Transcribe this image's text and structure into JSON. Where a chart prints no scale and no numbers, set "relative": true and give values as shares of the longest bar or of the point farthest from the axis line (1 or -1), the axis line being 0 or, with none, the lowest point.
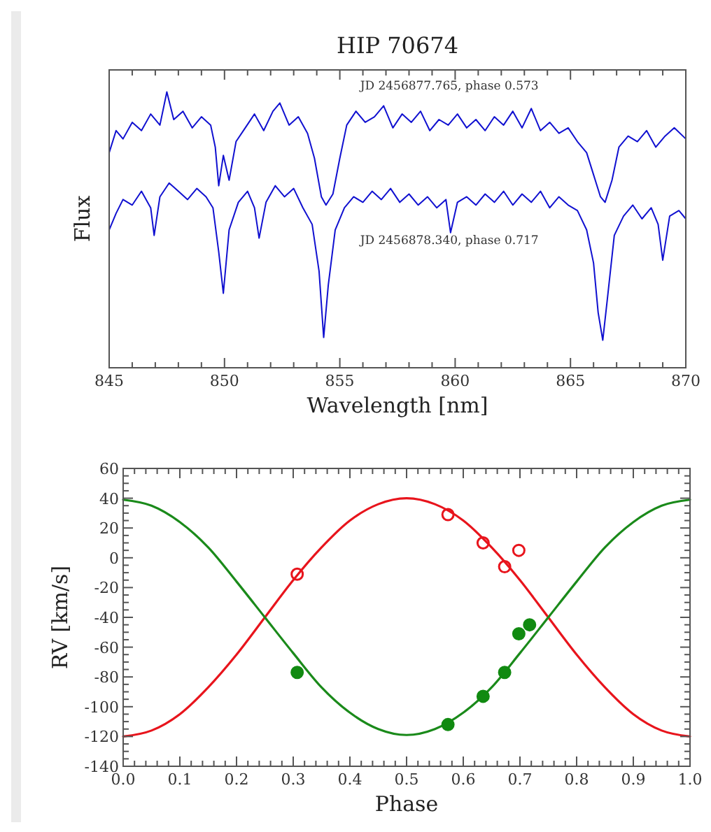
{
  "chart_data": [
    {
      "type": "line",
      "title": "HIP 70674",
      "xlabel": "Wavelength [nm]",
      "ylabel": "Flux",
      "relative": true,
      "xlim": [
        845,
        870
      ],
      "xticks": [
        845,
        850,
        855,
        860,
        865,
        870
      ],
      "annotations": [
        "JD 2456877.765, phase 0.573",
        "JD 2456878.340, phase 0.717"
      ],
      "line_style": "solid",
      "series": [
        {
          "color": "#1010d0",
          "x": [
            845,
            845.3,
            845.6,
            846,
            846.4,
            846.8,
            847.2,
            847.5,
            847.8,
            848.2,
            848.6,
            849,
            849.4,
            849.6,
            849.75,
            849.95,
            850.2,
            850.5,
            850.9,
            851.3,
            851.7,
            852.1,
            852.4,
            852.8,
            853.2,
            853.6,
            853.9,
            854.2,
            854.4,
            854.7,
            855,
            855.3,
            855.7,
            856.1,
            856.5,
            856.9,
            857.3,
            857.7,
            858.1,
            858.5,
            858.9,
            859.3,
            859.7,
            860.1,
            860.5,
            860.9,
            861.3,
            861.7,
            862.1,
            862.5,
            862.9,
            863.3,
            863.7,
            864.1,
            864.5,
            864.9,
            865.3,
            865.7,
            866,
            866.3,
            866.5,
            866.8,
            867.1,
            867.5,
            867.9,
            868.3,
            868.7,
            869.1,
            869.5,
            870
          ],
          "values": [
            0.78,
            0.86,
            0.83,
            0.89,
            0.86,
            0.92,
            0.88,
            1.0,
            0.9,
            0.93,
            0.87,
            0.91,
            0.88,
            0.8,
            0.66,
            0.77,
            0.68,
            0.82,
            0.87,
            0.92,
            0.86,
            0.93,
            0.96,
            0.88,
            0.91,
            0.85,
            0.76,
            0.62,
            0.59,
            0.63,
            0.76,
            0.88,
            0.93,
            0.89,
            0.91,
            0.95,
            0.87,
            0.92,
            0.89,
            0.93,
            0.86,
            0.9,
            0.88,
            0.92,
            0.87,
            0.9,
            0.86,
            0.91,
            0.88,
            0.93,
            0.87,
            0.94,
            0.86,
            0.89,
            0.85,
            0.87,
            0.82,
            0.78,
            0.7,
            0.62,
            0.6,
            0.68,
            0.8,
            0.84,
            0.82,
            0.86,
            0.8,
            0.84,
            0.87,
            0.83
          ]
        },
        {
          "color": "#1010d0",
          "x": [
            845,
            845.3,
            845.6,
            846,
            846.4,
            846.8,
            846.95,
            847.2,
            847.6,
            848,
            848.4,
            848.8,
            849.2,
            849.5,
            849.75,
            849.95,
            850.2,
            850.6,
            851,
            851.3,
            851.5,
            851.8,
            852.2,
            852.6,
            853,
            853.4,
            853.8,
            854.1,
            854.3,
            854.5,
            854.8,
            855.2,
            855.6,
            856,
            856.4,
            856.8,
            857.2,
            857.6,
            858,
            858.4,
            858.8,
            859.2,
            859.6,
            859.8,
            860.1,
            860.5,
            860.9,
            861.3,
            861.7,
            862.1,
            862.5,
            862.9,
            863.3,
            863.7,
            864.1,
            864.5,
            864.9,
            865.3,
            865.7,
            866,
            866.2,
            866.4,
            866.6,
            866.9,
            867.3,
            867.7,
            868.1,
            868.5,
            868.8,
            869,
            869.3,
            869.7,
            870
          ],
          "values": [
            0.5,
            0.56,
            0.61,
            0.59,
            0.64,
            0.58,
            0.48,
            0.62,
            0.67,
            0.64,
            0.61,
            0.65,
            0.62,
            0.58,
            0.42,
            0.27,
            0.5,
            0.6,
            0.64,
            0.58,
            0.47,
            0.6,
            0.66,
            0.62,
            0.65,
            0.58,
            0.52,
            0.35,
            0.11,
            0.3,
            0.5,
            0.58,
            0.62,
            0.6,
            0.64,
            0.61,
            0.65,
            0.6,
            0.63,
            0.59,
            0.62,
            0.58,
            0.61,
            0.49,
            0.6,
            0.62,
            0.59,
            0.63,
            0.6,
            0.64,
            0.59,
            0.63,
            0.6,
            0.64,
            0.58,
            0.62,
            0.59,
            0.57,
            0.5,
            0.38,
            0.2,
            0.1,
            0.25,
            0.48,
            0.55,
            0.59,
            0.54,
            0.58,
            0.52,
            0.39,
            0.55,
            0.57,
            0.54
          ]
        }
      ]
    },
    {
      "type": "scatter",
      "xlabel": "Phase",
      "ylabel": "RV [km/s]",
      "xlim": [
        0,
        1
      ],
      "ylim": [
        -140,
        60
      ],
      "xticks": [
        {
          "value": 0,
          "label": "0.0"
        },
        0.1,
        0.2,
        0.3,
        0.4,
        0.5,
        0.6,
        0.7,
        0.8,
        0.9,
        {
          "value": 1,
          "label": "1.0"
        }
      ],
      "yticks": [
        -140,
        -120,
        -100,
        -80,
        -60,
        -40,
        -20,
        0,
        20,
        40,
        60
      ],
      "series": [
        {
          "type": "line",
          "color": "#e8141c",
          "line_style": "solid",
          "x": [
            0,
            0.05,
            0.1,
            0.15,
            0.2,
            0.25,
            0.3,
            0.35,
            0.4,
            0.45,
            0.5,
            0.55,
            0.6,
            0.65,
            0.7,
            0.75,
            0.8,
            0.85,
            0.9,
            0.95,
            1
          ],
          "values": [
            -120,
            -116,
            -105,
            -87,
            -65,
            -40,
            -15,
            7,
            25,
            36,
            40,
            36,
            25,
            7,
            -15,
            -40,
            -65,
            -87,
            -105,
            -116,
            -120
          ]
        },
        {
          "type": "line",
          "color": "#1a8a1a",
          "line_style": "solid",
          "x": [
            0,
            0.05,
            0.1,
            0.15,
            0.2,
            0.25,
            0.3,
            0.35,
            0.4,
            0.45,
            0.5,
            0.55,
            0.6,
            0.65,
            0.7,
            0.75,
            0.8,
            0.85,
            0.9,
            0.95,
            1
          ],
          "values": [
            39,
            35,
            24,
            7,
            -16,
            -40,
            -64,
            -87,
            -104,
            -115,
            -119,
            -115,
            -104,
            -87,
            -64,
            -40,
            -16,
            7,
            24,
            35,
            39
          ]
        },
        {
          "color": "#e8141c",
          "marker": "circle",
          "x": [
            0.307,
            0.573,
            0.635,
            0.673,
            0.698
          ],
          "values": [
            -11,
            29,
            10,
            -6,
            5
          ]
        },
        {
          "color": "#118a11",
          "marker": "circle",
          "x": [
            0.307,
            0.573,
            0.635,
            0.673,
            0.698,
            0.717
          ],
          "values": [
            -77,
            -112,
            -93,
            -77,
            -51,
            -45
          ]
        }
      ]
    }
  ]
}
